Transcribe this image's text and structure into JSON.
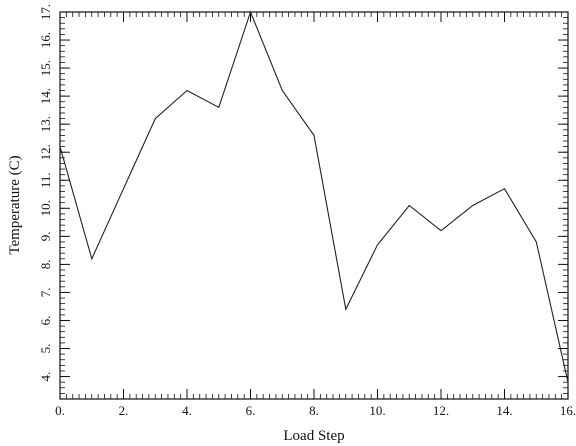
{
  "chart_data": {
    "type": "line",
    "xlabel": "Load Step",
    "ylabel": "Temperature (C)",
    "xlim": [
      0,
      16
    ],
    "ylim": [
      3.2,
      17
    ],
    "x_ticks": [
      0,
      2,
      4,
      6,
      8,
      10,
      12,
      14,
      16
    ],
    "x_tick_labels": [
      "0.",
      "2.",
      "4.",
      "6.",
      "8.",
      "10.",
      "12.",
      "14.",
      "16."
    ],
    "y_ticks": [
      4,
      5,
      6,
      7,
      8,
      9,
      10,
      11,
      12,
      13,
      14,
      15,
      16,
      17
    ],
    "y_tick_labels": [
      "4.",
      "5.",
      "6.",
      "7.",
      "8.",
      "9.",
      "10.",
      "11.",
      "12.",
      "13.",
      "14.",
      "15.",
      "16.",
      "17."
    ],
    "grid": false,
    "series": [
      {
        "x": [
          0,
          1,
          2,
          3,
          4,
          5,
          6,
          7,
          8,
          9,
          10,
          11,
          12,
          13,
          14,
          15,
          16
        ],
        "values": [
          12.2,
          8.2,
          10.7,
          13.2,
          14.2,
          13.6,
          17.0,
          14.2,
          12.6,
          6.4,
          8.7,
          10.1,
          9.2,
          10.1,
          10.7,
          8.8,
          3.8
        ]
      }
    ],
    "line_color": "#222222"
  }
}
